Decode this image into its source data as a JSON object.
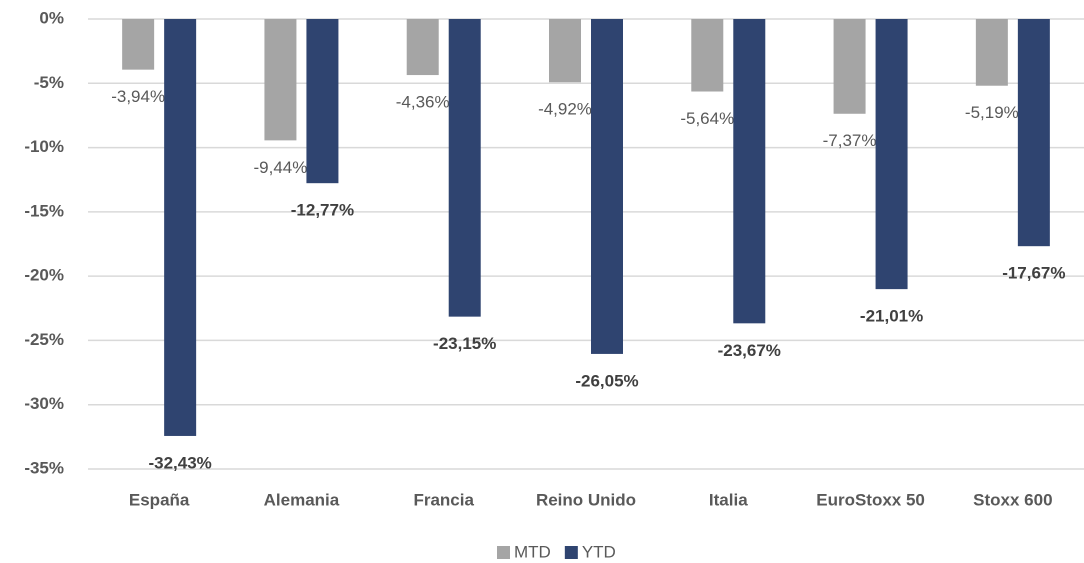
{
  "chart_data": {
    "type": "bar",
    "categories": [
      "España",
      "Alemania",
      "Francia",
      "Reino Unido",
      "Italia",
      "EuroStoxx 50",
      "Stoxx 600"
    ],
    "series": [
      {
        "name": "MTD",
        "color": "#a5a5a5",
        "values": [
          -3.94,
          -9.44,
          -4.36,
          -4.92,
          -5.64,
          -7.37,
          -5.19
        ],
        "value_labels": [
          "-3,94%",
          "-9,44%",
          "-4,36%",
          "-4,92%",
          "-5,64%",
          "-7,37%",
          "-5,19%"
        ]
      },
      {
        "name": "YTD",
        "color": "#2f4470",
        "values": [
          -32.43,
          -12.77,
          -23.15,
          -26.05,
          -23.67,
          -21.01,
          -17.67
        ],
        "value_labels": [
          "-32,43%",
          "-12,77%",
          "-23,15%",
          "-26,05%",
          "-23,67%",
          "-21,01%",
          "-17,67%"
        ]
      }
    ],
    "ylim": [
      -35,
      0
    ],
    "yticks": [
      {
        "value": 0,
        "label": "0%"
      },
      {
        "value": -5,
        "label": "-5%"
      },
      {
        "value": -10,
        "label": "-10%"
      },
      {
        "value": -15,
        "label": "-15%"
      },
      {
        "value": -20,
        "label": "-20%"
      },
      {
        "value": -25,
        "label": "-25%"
      },
      {
        "value": -30,
        "label": "-30%"
      },
      {
        "value": -35,
        "label": "-35%"
      }
    ],
    "grid": true,
    "legend": "bottom"
  }
}
